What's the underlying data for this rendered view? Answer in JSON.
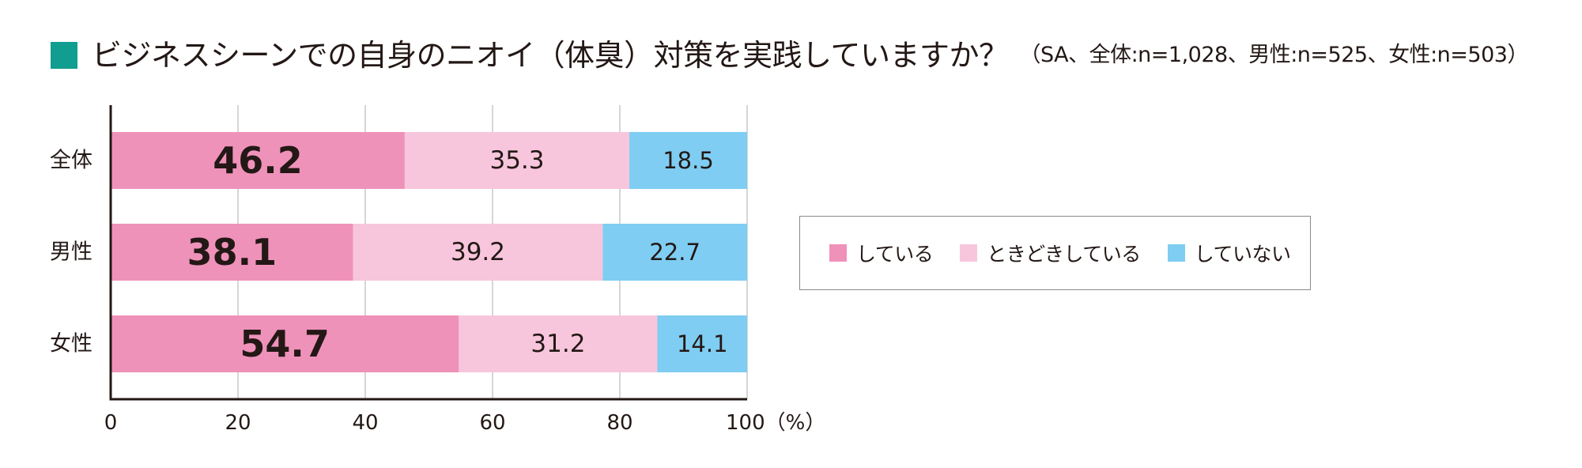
{
  "title": {
    "main": "ビジネスシーンでの自身のニオイ（体臭）対策を実践していますか？",
    "sub": "（SA、全体:n=1,028、男性:n=525、女性:n=503）"
  },
  "colors": {
    "accent_square": "#119d8f",
    "series": [
      "#ef92ba",
      "#f7c6dc",
      "#7fcdf2"
    ],
    "grid": "#c8c8c8",
    "axis": "#231815",
    "legend_border": "#8a8a8a"
  },
  "chart_data": {
    "type": "bar",
    "orientation": "horizontal",
    "stacked": true,
    "categories": [
      "全体",
      "男性",
      "女性"
    ],
    "series": [
      {
        "name": "している",
        "values": [
          46.2,
          38.1,
          54.7
        ]
      },
      {
        "name": "ときどきしている",
        "values": [
          35.3,
          39.2,
          31.2
        ]
      },
      {
        "name": "していない",
        "values": [
          18.5,
          22.7,
          14.1
        ]
      }
    ],
    "data_labels": [
      [
        "46.2",
        "38.1",
        "54.7"
      ],
      [
        "35.3",
        "39.2",
        "31.2"
      ],
      [
        "18.5",
        "22.7",
        "14.1"
      ]
    ],
    "x_ticks": [
      "0",
      "20",
      "40",
      "60",
      "80",
      "100（%）"
    ],
    "xlim": [
      0,
      100
    ],
    "grid": true,
    "legend_position": "right"
  }
}
